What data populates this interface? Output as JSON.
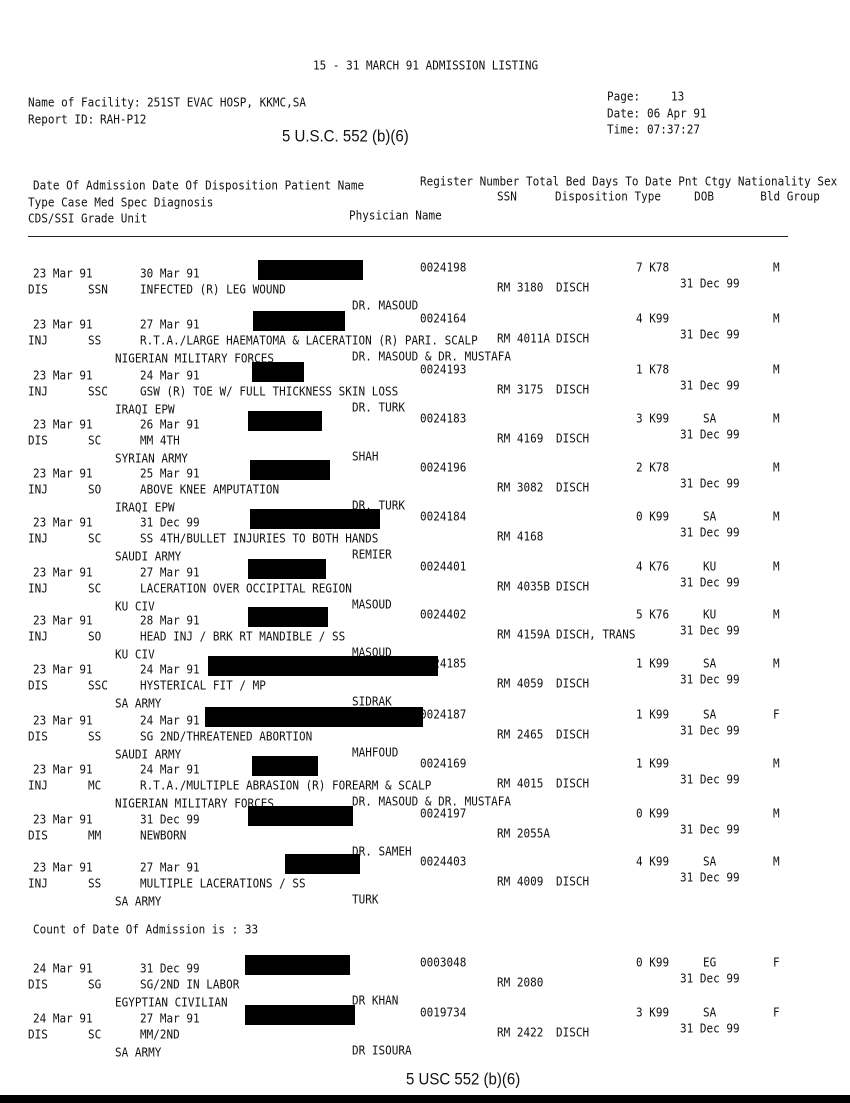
{
  "title": "15 - 31 MARCH 91 ADMISSION LISTING",
  "facility_label": "Name of Facility:",
  "facility": "251ST EVAC HOSP, KKMC,SA",
  "report_label": "Report ID:",
  "report_id": "RAH-P12",
  "page_label": "Page:",
  "page": "13",
  "date_label": "Date:",
  "date": "06 Apr 91",
  "time_label": "Time:",
  "time": "07:37:27",
  "exemption_top": "5 U.S.C. 552 (b)(6)",
  "exemption_bottom": "5 USC 552 (b)(6)",
  "headers": {
    "row1_left": "Date Of Admission Date Of Disposition Patient Name",
    "row1_right": "Register Number Total Bed Days To Date Pnt Ctgy Nationality Sex",
    "row2_left": "Type Case Med Spec Diagnosis",
    "row2_ssn": "SSN",
    "row2_right": "Disposition Type     DOB       Bld Group",
    "row3_left": "CDS/SSI Grade Unit",
    "row3_physician": "Physician Name"
  },
  "records": [
    {
      "admit": "23 Mar 91",
      "disp_date": "30 Mar 91",
      "reg": "0024198",
      "days_ctgy": "7 K78",
      "nat": "",
      "sex": "M",
      "type": "DIS",
      "spec": "SSN",
      "diag": "INFECTED (R) LEG WOUND",
      "rm": "RM 3180",
      "disp_type": "DISCH",
      "dob": "31 Dec 99",
      "unit": "",
      "physician": "DR. MASOUD"
    },
    {
      "admit": "23 Mar 91",
      "disp_date": "27 Mar 91",
      "reg": "0024164",
      "days_ctgy": "4 K99",
      "nat": "",
      "sex": "M",
      "type": "INJ",
      "spec": "SS",
      "diag": "R.T.A./LARGE HAEMATOMA & LACERATION (R) PARI. SCALP",
      "rm": "RM 4011A",
      "disp_type": "DISCH",
      "dob": "31 Dec 99",
      "unit": "NIGERIAN MILITARY FORCES",
      "physician": "DR. MASOUD & DR. MUSTAFA"
    },
    {
      "admit": "23 Mar 91",
      "disp_date": "24 Mar 91",
      "reg": "0024193",
      "days_ctgy": "1 K78",
      "nat": "",
      "sex": "M",
      "type": "INJ",
      "spec": "SSC",
      "diag": "GSW (R) TOE W/ FULL THICKNESS SKIN LOSS",
      "rm": "RM 3175",
      "disp_type": "DISCH",
      "dob": "31 Dec 99",
      "unit": "IRAQI EPW",
      "physician": "DR. TURK"
    },
    {
      "admit": "23 Mar 91",
      "disp_date": "26 Mar 91",
      "reg": "0024183",
      "days_ctgy": "3 K99",
      "nat": "SA",
      "sex": "M",
      "type": "DIS",
      "spec": "SC",
      "diag": "MM 4TH",
      "rm": "RM 4169",
      "disp_type": "DISCH",
      "dob": "31 Dec 99",
      "unit": "SYRIAN ARMY",
      "physician": "SHAH"
    },
    {
      "admit": "23 Mar 91",
      "disp_date": "25 Mar 91",
      "reg": "0024196",
      "days_ctgy": "2 K78",
      "nat": "",
      "sex": "M",
      "type": "INJ",
      "spec": "SO",
      "diag": "ABOVE KNEE AMPUTATION",
      "rm": "RM 3082",
      "disp_type": "DISCH",
      "dob": "31 Dec 99",
      "unit": "IRAQI EPW",
      "physician": "DR. TURK"
    },
    {
      "admit": "23 Mar 91",
      "disp_date": "31 Dec 99",
      "reg": "0024184",
      "days_ctgy": "0 K99",
      "nat": "SA",
      "sex": "M",
      "type": "INJ",
      "spec": "SC",
      "diag": "SS 4TH/BULLET INJURIES TO BOTH HANDS",
      "rm": "RM 4168",
      "disp_type": "",
      "dob": "31 Dec 99",
      "unit": "SAUDI ARMY",
      "physician": "REMIER"
    },
    {
      "admit": "23 Mar 91",
      "disp_date": "27 Mar 91",
      "reg": "0024401",
      "days_ctgy": "4 K76",
      "nat": "KU",
      "sex": "M",
      "type": "INJ",
      "spec": "SC",
      "diag": "LACERATION OVER OCCIPITAL REGION",
      "rm": "RM 4035B",
      "disp_type": "DISCH",
      "dob": "31 Dec 99",
      "unit": "KU CIV",
      "physician": "MASOUD"
    },
    {
      "admit": "23 Mar 91",
      "disp_date": "28 Mar 91",
      "reg": "0024402",
      "days_ctgy": "5 K76",
      "nat": "KU",
      "sex": "M",
      "type": "INJ",
      "spec": "SO",
      "diag": "HEAD INJ / BRK RT MANDIBLE / SS",
      "rm": "RM 4159A",
      "disp_type": "DISCH, TRANS",
      "dob": "31 Dec 99",
      "unit": "KU CIV",
      "physician": "MASOUD"
    },
    {
      "admit": "23 Mar 91",
      "disp_date": "24 Mar 91",
      "reg": "0024185",
      "days_ctgy": "1 K99",
      "nat": "SA",
      "sex": "M",
      "type": "DIS",
      "spec": "SSC",
      "diag": "HYSTERICAL FIT / MP",
      "rm": "RM 4059",
      "disp_type": "DISCH",
      "dob": "31 Dec 99",
      "unit": "SA ARMY",
      "physician": "SIDRAK"
    },
    {
      "admit": "23 Mar 91",
      "disp_date": "24 Mar 91",
      "reg": "0024187",
      "days_ctgy": "1 K99",
      "nat": "SA",
      "sex": "F",
      "type": "DIS",
      "spec": "SS",
      "diag": "SG 2ND/THREATENED ABORTION",
      "rm": "RM 2465",
      "disp_type": "DISCH",
      "dob": "31 Dec 99",
      "unit": "SAUDI ARMY",
      "physician": "MAHFOUD"
    },
    {
      "admit": "23 Mar 91",
      "disp_date": "24 Mar 91",
      "reg": "0024169",
      "days_ctgy": "1 K99",
      "nat": "",
      "sex": "M",
      "type": "INJ",
      "spec": "MC",
      "diag": "R.T.A./MULTIPLE ABRASION (R) FOREARM & SCALP",
      "rm": "RM 4015",
      "disp_type": "DISCH",
      "dob": "31 Dec 99",
      "unit": "NIGERIAN MILITARY FORCES",
      "physician": "DR. MASOUD & DR. MUSTAFA"
    },
    {
      "admit": "23 Mar 91",
      "disp_date": "31 Dec 99",
      "reg": "0024197",
      "days_ctgy": "0 K99",
      "nat": "",
      "sex": "M",
      "type": "DIS",
      "spec": "MM",
      "diag": "NEWBORN",
      "rm": "RM 2055A",
      "disp_type": "",
      "dob": "31 Dec 99",
      "unit": "",
      "physician": "DR. SAMEH"
    },
    {
      "admit": "23 Mar 91",
      "disp_date": "27 Mar 91",
      "reg": "0024403",
      "days_ctgy": "4 K99",
      "nat": "SA",
      "sex": "M",
      "type": "INJ",
      "spec": "SS",
      "diag": "MULTIPLE LACERATIONS / SS",
      "rm": "RM 4009",
      "disp_type": "DISCH",
      "dob": "31 Dec 99",
      "unit": "SA ARMY",
      "physician": "TURK"
    },
    {
      "admit": "24 Mar 91",
      "disp_date": "31 Dec 99",
      "reg": "0003048",
      "days_ctgy": "0 K99",
      "nat": "EG",
      "sex": "F",
      "type": "DIS",
      "spec": "SG",
      "diag": "SG/2ND IN LABOR",
      "rm": "RM 2080",
      "disp_type": "",
      "dob": "31 Dec 99",
      "unit": "EGYPTIAN CIVILIAN",
      "physician": "DR KHAN"
    },
    {
      "admit": "24 Mar 91",
      "disp_date": "27 Mar 91",
      "reg": "0019734",
      "days_ctgy": "3 K99",
      "nat": "SA",
      "sex": "F",
      "type": "DIS",
      "spec": "SC",
      "diag": "MM/2ND",
      "rm": "RM 2422",
      "disp_type": "DISCH",
      "dob": "31 Dec 99",
      "unit": "SA ARMY",
      "physician": "DR ISOURA"
    }
  ],
  "count_text": "Count of Date Of Admission is : 33"
}
